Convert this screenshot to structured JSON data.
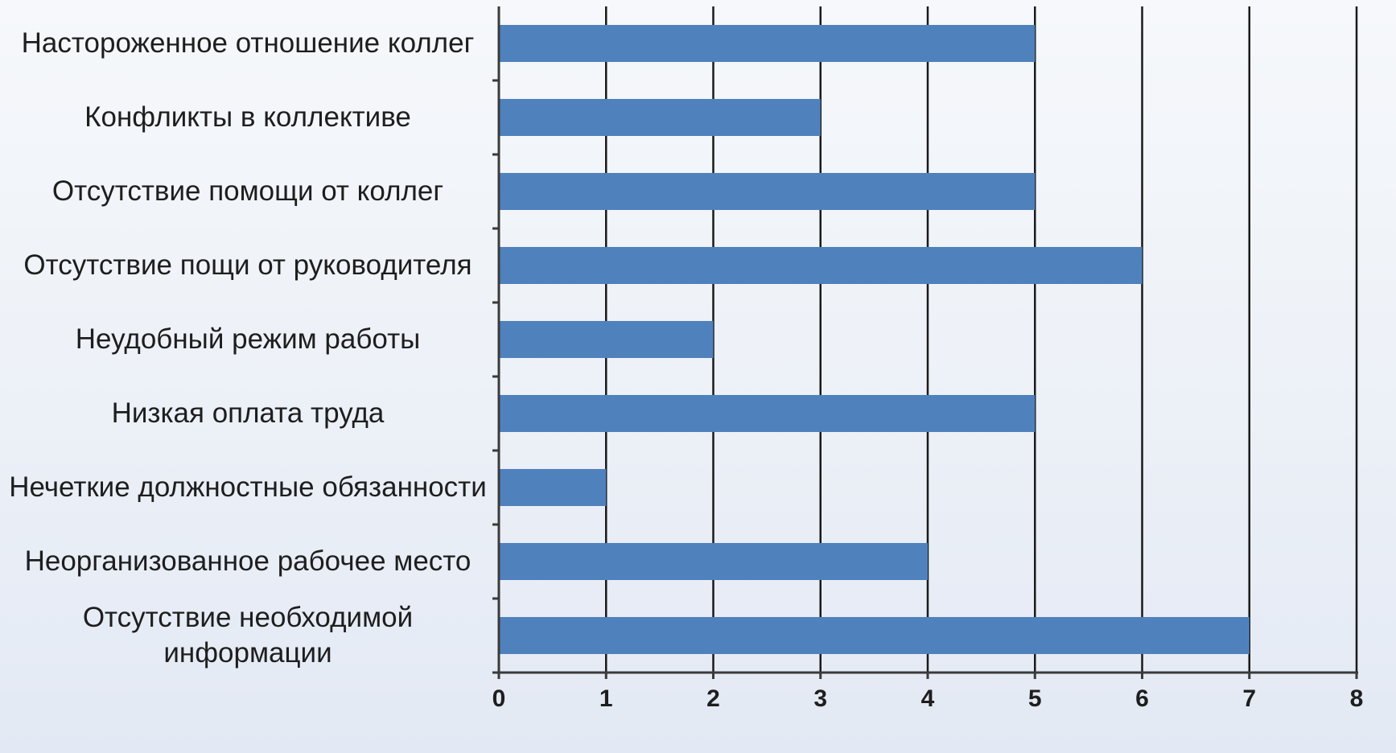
{
  "chart_data": {
    "type": "bar",
    "orientation": "horizontal",
    "title": "",
    "xlabel": "",
    "ylabel": "",
    "categories": [
      "Настороженное отношение коллег",
      "Конфликты в коллективе",
      "Отсутствие помощи от коллег",
      "Отсутствие пощи от руководителя",
      "Неудобный режим работы",
      "Низкая оплата труда",
      "Нечеткие должностные обязанности",
      "Неорганизованное рабочее место",
      "Отсутствие необходимой информации"
    ],
    "values": [
      5,
      3,
      5,
      6,
      2,
      5,
      1,
      4,
      7
    ],
    "xlim": [
      0,
      8
    ],
    "xticks": [
      "0",
      "1",
      "2",
      "3",
      "4",
      "5",
      "6",
      "7",
      "8"
    ],
    "grid": true,
    "legend": "none",
    "bar_color": "#4f81bd",
    "grid_color": "#1a1a1a"
  }
}
